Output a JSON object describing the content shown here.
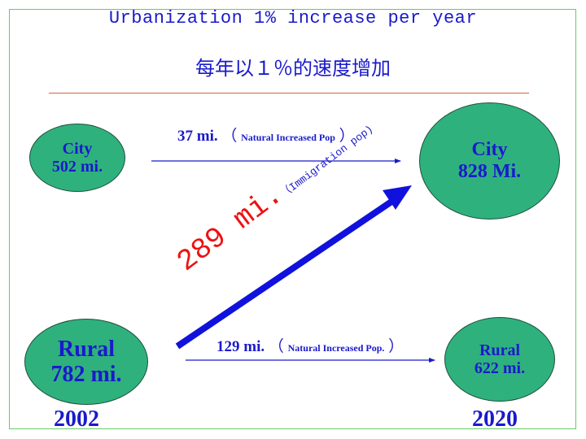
{
  "title": {
    "english": "Urbanization 1% increase per year",
    "chinese": "每年以１％的速度增加"
  },
  "nodes": {
    "city_2002": {
      "name": "City",
      "value": "502 mi."
    },
    "city_2020": {
      "name": "City",
      "value": "828 Mi."
    },
    "rural_2002": {
      "name": "Rural",
      "value": "782 mi."
    },
    "rural_2020": {
      "name": "Rural",
      "value": "622 mi."
    }
  },
  "flows": {
    "city_natural": {
      "value": "37 mi.",
      "open": "（",
      "label": "Natural Increased Pop",
      "close": "）"
    },
    "rural_natural": {
      "value": "129 mi.",
      "open": "（",
      "label": "Natural Increased Pop.",
      "close": "）"
    },
    "immigration": {
      "value": "289 mi.",
      "label": "（Immigration pop)"
    }
  },
  "years": {
    "start": "2002",
    "end": "2020"
  },
  "colors": {
    "title": "#1a1acc",
    "node_fill": "#2fb17e",
    "node_text": "#1a1acc",
    "migration_arrow": "#1111dd",
    "migration_value": "#ee1111",
    "divider": "#cc6644",
    "frame": "#66cc66"
  }
}
